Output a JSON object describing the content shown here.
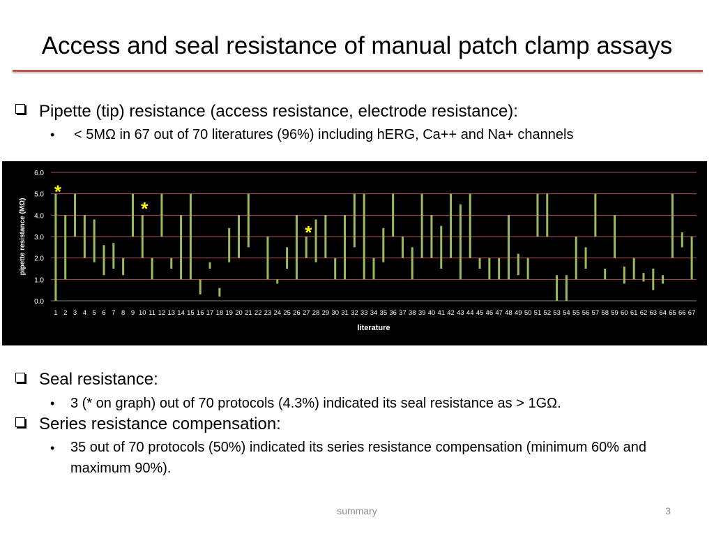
{
  "slide": {
    "title": "Access and seal resistance of manual patch clamp assays",
    "pipette_heading": "Pipette (tip) resistance (access resistance, electrode resistance):",
    "pipette_sub": "< 5MΩ in 67 out of 70 literatures (96%)  including hERG, Ca++ and Na+ channels",
    "seal_heading": "Seal resistance:",
    "seal_sub": "3 (* on graph) out of 70 protocols (4.3%) indicated its seal resistance as > 1GΩ.",
    "series_heading": "Series resistance compensation:",
    "series_sub": "35 out of 70 protocols  (50%) indicated its series resistance compensation (minimum 60%  and maximum 90%).",
    "sub_bullet_char": "•",
    "footer_label": "summary",
    "page_number": "3"
  },
  "colors": {
    "accent_rule": "#c0504d",
    "chart_background": "#000000",
    "bar_color": "#9bbb59",
    "grid_color": "#b05050",
    "axis_text": "#ffffff",
    "star_color": "#ffff00"
  },
  "chart_data": {
    "type": "floating-bar",
    "xlabel": "literature",
    "ylabel": "pipette resistance (MΩ)",
    "ylim": [
      0,
      6
    ],
    "yticks": [
      "0.0",
      "1.0",
      "2.0",
      "3.0",
      "4.0",
      "5.0",
      "6.0"
    ],
    "grid": true,
    "categories": [
      "1",
      "2",
      "3",
      "4",
      "5",
      "6",
      "7",
      "8",
      "9",
      "10",
      "11",
      "12",
      "13",
      "14",
      "15",
      "16",
      "17",
      "18",
      "19",
      "20",
      "21",
      "22",
      "23",
      "24",
      "25",
      "26",
      "27",
      "28",
      "29",
      "30",
      "31",
      "32",
      "33",
      "34",
      "35",
      "36",
      "37",
      "38",
      "39",
      "40",
      "41",
      "42",
      "43",
      "44",
      "45",
      "46",
      "47",
      "48",
      "49",
      "50",
      "51",
      "52",
      "53",
      "54",
      "55",
      "56",
      "57",
      "58",
      "59",
      "60",
      "61",
      "62",
      "63",
      "64",
      "65",
      "66",
      "67"
    ],
    "ranges": [
      [
        0,
        5
      ],
      [
        1,
        4
      ],
      [
        3,
        5
      ],
      [
        2,
        4
      ],
      [
        1.8,
        3.8
      ],
      [
        1.2,
        2.6
      ],
      [
        1.5,
        2.7
      ],
      [
        1.2,
        2
      ],
      [
        3,
        5
      ],
      [
        2,
        4
      ],
      [
        1,
        2
      ],
      [
        3,
        5
      ],
      [
        1.5,
        2
      ],
      [
        1,
        4
      ],
      [
        1,
        5
      ],
      [
        0.3,
        1
      ],
      [
        1.5,
        1.8
      ],
      [
        0.2,
        0.6
      ],
      [
        1.8,
        3.4
      ],
      [
        2,
        4
      ],
      [
        2.5,
        5
      ],
      [
        null,
        null
      ],
      [
        1,
        3
      ],
      [
        0.8,
        1
      ],
      [
        1.5,
        2.5
      ],
      [
        1,
        4
      ],
      [
        2,
        3
      ],
      [
        1.8,
        3.8
      ],
      [
        2,
        4
      ],
      [
        1,
        2
      ],
      [
        1,
        4
      ],
      [
        2.5,
        5
      ],
      [
        1,
        5
      ],
      [
        1,
        2
      ],
      [
        1.8,
        3.4
      ],
      [
        3,
        5
      ],
      [
        2,
        3
      ],
      [
        1,
        2.5
      ],
      [
        2,
        5
      ],
      [
        2,
        4
      ],
      [
        1.5,
        3.5
      ],
      [
        2,
        5
      ],
      [
        1,
        4.5
      ],
      [
        2,
        5
      ],
      [
        1.5,
        2
      ],
      [
        1,
        2
      ],
      [
        1,
        2
      ],
      [
        1,
        4
      ],
      [
        1.2,
        2.2
      ],
      [
        1,
        2
      ],
      [
        3,
        5
      ],
      [
        3,
        5
      ],
      [
        0,
        1.2
      ],
      [
        0,
        1.2
      ],
      [
        1,
        3
      ],
      [
        1.5,
        2.5
      ],
      [
        3,
        5
      ],
      [
        1,
        1.5
      ],
      [
        2,
        4
      ],
      [
        0.8,
        1.6
      ],
      [
        1,
        2
      ],
      [
        0.9,
        1.3
      ],
      [
        0.5,
        1.5
      ],
      [
        0.8,
        1.2
      ],
      [
        2,
        5
      ],
      [
        2.5,
        3.2
      ],
      [
        1,
        3
      ]
    ],
    "annotations": [
      {
        "text": "*",
        "literature": "1",
        "y": 5.2
      },
      {
        "text": "*",
        "literature": "10",
        "y": 4.4
      },
      {
        "text": "*",
        "literature": "27",
        "y": 3.3
      }
    ]
  }
}
